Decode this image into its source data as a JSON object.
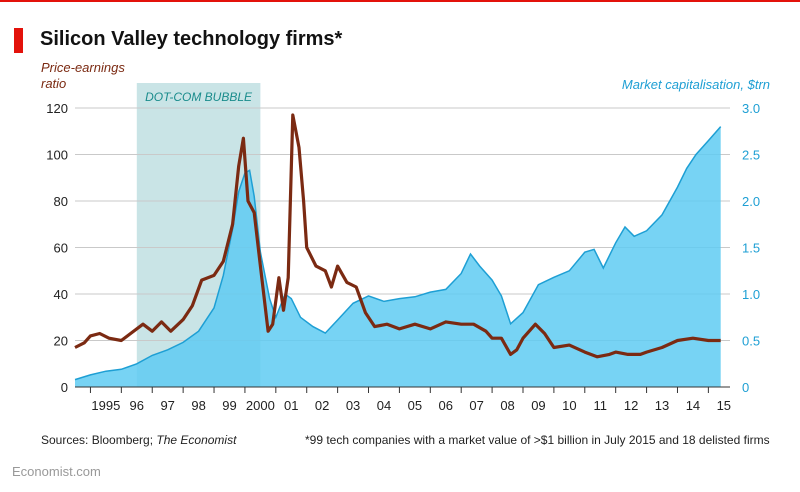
{
  "title": "Silicon Valley technology firms*",
  "footer": {
    "sources_prefix": "Sources: Bloomberg; ",
    "sources_italic": "The Economist",
    "footnote": "*99 tech companies with a market value of >$1 billion in July 2015 and 18 delisted firms",
    "brand": "Economist.com"
  },
  "colors": {
    "accent": "#e3120b",
    "pe_line": "#7b2a12",
    "market_cap_fill": "#5fcbf2",
    "market_cap_edge": "#1e9fd4",
    "bubble_shade": "#bfdfe2",
    "bubble_label": "#1a8c8c"
  },
  "chart_data": {
    "type": "line",
    "title": "Silicon Valley technology firms*",
    "xlabel": "",
    "x_range": [
      1994.5,
      2015.7
    ],
    "x_tick_labels": [
      "1995",
      "96",
      "97",
      "98",
      "99",
      "2000",
      "01",
      "02",
      "03",
      "04",
      "05",
      "06",
      "07",
      "08",
      "09",
      "10",
      "11",
      "12",
      "13",
      "14",
      "15"
    ],
    "y_left": {
      "label": "Price-earnings ratio",
      "range": [
        0,
        120
      ],
      "ticks": [
        0,
        20,
        40,
        60,
        80,
        100,
        120
      ]
    },
    "y_right": {
      "label": "Market capitalisation, $trn",
      "range": [
        0,
        3.0
      ],
      "ticks": [
        "0",
        "0.5",
        "1.0",
        "1.5",
        "2.0",
        "2.5",
        "3.0"
      ]
    },
    "grid": true,
    "annotation": {
      "label": "DOT-COM BUBBLE",
      "x_start": 1996.5,
      "x_end": 2000.5
    },
    "series": [
      {
        "name": "Market capitalisation",
        "type": "area",
        "axis": "right",
        "points": [
          [
            1994.5,
            0.08
          ],
          [
            1995.0,
            0.13
          ],
          [
            1995.5,
            0.17
          ],
          [
            1996.0,
            0.19
          ],
          [
            1996.5,
            0.25
          ],
          [
            1997.0,
            0.34
          ],
          [
            1997.5,
            0.4
          ],
          [
            1998.0,
            0.48
          ],
          [
            1998.5,
            0.6
          ],
          [
            1999.0,
            0.85
          ],
          [
            1999.3,
            1.2
          ],
          [
            1999.6,
            1.7
          ],
          [
            1999.8,
            2.1
          ],
          [
            2000.0,
            2.3
          ],
          [
            2000.15,
            2.33
          ],
          [
            2000.3,
            2.05
          ],
          [
            2000.5,
            1.45
          ],
          [
            2000.8,
            0.95
          ],
          [
            2001.0,
            0.75
          ],
          [
            2001.3,
            1.0
          ],
          [
            2001.5,
            0.95
          ],
          [
            2001.8,
            0.75
          ],
          [
            2002.2,
            0.65
          ],
          [
            2002.6,
            0.58
          ],
          [
            2003.0,
            0.72
          ],
          [
            2003.5,
            0.9
          ],
          [
            2004.0,
            0.98
          ],
          [
            2004.5,
            0.92
          ],
          [
            2005.0,
            0.95
          ],
          [
            2005.5,
            0.97
          ],
          [
            2006.0,
            1.02
          ],
          [
            2006.5,
            1.05
          ],
          [
            2007.0,
            1.22
          ],
          [
            2007.3,
            1.43
          ],
          [
            2007.6,
            1.3
          ],
          [
            2008.0,
            1.15
          ],
          [
            2008.3,
            0.98
          ],
          [
            2008.6,
            0.68
          ],
          [
            2009.0,
            0.8
          ],
          [
            2009.5,
            1.1
          ],
          [
            2010.0,
            1.18
          ],
          [
            2010.5,
            1.25
          ],
          [
            2011.0,
            1.45
          ],
          [
            2011.3,
            1.48
          ],
          [
            2011.6,
            1.28
          ],
          [
            2012.0,
            1.55
          ],
          [
            2012.3,
            1.72
          ],
          [
            2012.6,
            1.62
          ],
          [
            2013.0,
            1.68
          ],
          [
            2013.5,
            1.85
          ],
          [
            2014.0,
            2.15
          ],
          [
            2014.3,
            2.35
          ],
          [
            2014.6,
            2.5
          ],
          [
            2015.0,
            2.65
          ],
          [
            2015.4,
            2.8
          ]
        ]
      },
      {
        "name": "Price-earnings ratio",
        "type": "line",
        "axis": "left",
        "points": [
          [
            1994.5,
            17
          ],
          [
            1994.8,
            19
          ],
          [
            1995.0,
            22
          ],
          [
            1995.3,
            23
          ],
          [
            1995.6,
            21
          ],
          [
            1996.0,
            20
          ],
          [
            1996.3,
            23
          ],
          [
            1996.7,
            27
          ],
          [
            1997.0,
            24
          ],
          [
            1997.3,
            28
          ],
          [
            1997.6,
            24
          ],
          [
            1998.0,
            29
          ],
          [
            1998.3,
            35
          ],
          [
            1998.6,
            46
          ],
          [
            1999.0,
            48
          ],
          [
            1999.3,
            54
          ],
          [
            1999.6,
            70
          ],
          [
            1999.8,
            95
          ],
          [
            1999.95,
            107
          ],
          [
            2000.1,
            80
          ],
          [
            2000.3,
            75
          ],
          [
            2000.5,
            52
          ],
          [
            2000.75,
            24
          ],
          [
            2000.9,
            27
          ],
          [
            2001.1,
            47
          ],
          [
            2001.25,
            33
          ],
          [
            2001.4,
            47
          ],
          [
            2001.55,
            117
          ],
          [
            2001.75,
            103
          ],
          [
            2001.9,
            80
          ],
          [
            2002.0,
            60
          ],
          [
            2002.3,
            52
          ],
          [
            2002.6,
            50
          ],
          [
            2002.8,
            43
          ],
          [
            2003.0,
            52
          ],
          [
            2003.3,
            45
          ],
          [
            2003.6,
            43
          ],
          [
            2003.9,
            32
          ],
          [
            2004.2,
            26
          ],
          [
            2004.6,
            27
          ],
          [
            2005.0,
            25
          ],
          [
            2005.5,
            27
          ],
          [
            2006.0,
            25
          ],
          [
            2006.5,
            28
          ],
          [
            2007.0,
            27
          ],
          [
            2007.4,
            27
          ],
          [
            2007.8,
            24
          ],
          [
            2008.0,
            21
          ],
          [
            2008.3,
            21
          ],
          [
            2008.6,
            14
          ],
          [
            2008.8,
            16
          ],
          [
            2009.0,
            21
          ],
          [
            2009.4,
            27
          ],
          [
            2009.7,
            23
          ],
          [
            2010.0,
            17
          ],
          [
            2010.5,
            18
          ],
          [
            2011.0,
            15
          ],
          [
            2011.4,
            13
          ],
          [
            2011.8,
            14
          ],
          [
            2012.0,
            15
          ],
          [
            2012.4,
            14
          ],
          [
            2012.8,
            14
          ],
          [
            2013.0,
            15
          ],
          [
            2013.5,
            17
          ],
          [
            2014.0,
            20
          ],
          [
            2014.5,
            21
          ],
          [
            2015.0,
            20
          ],
          [
            2015.4,
            20
          ]
        ]
      }
    ]
  }
}
